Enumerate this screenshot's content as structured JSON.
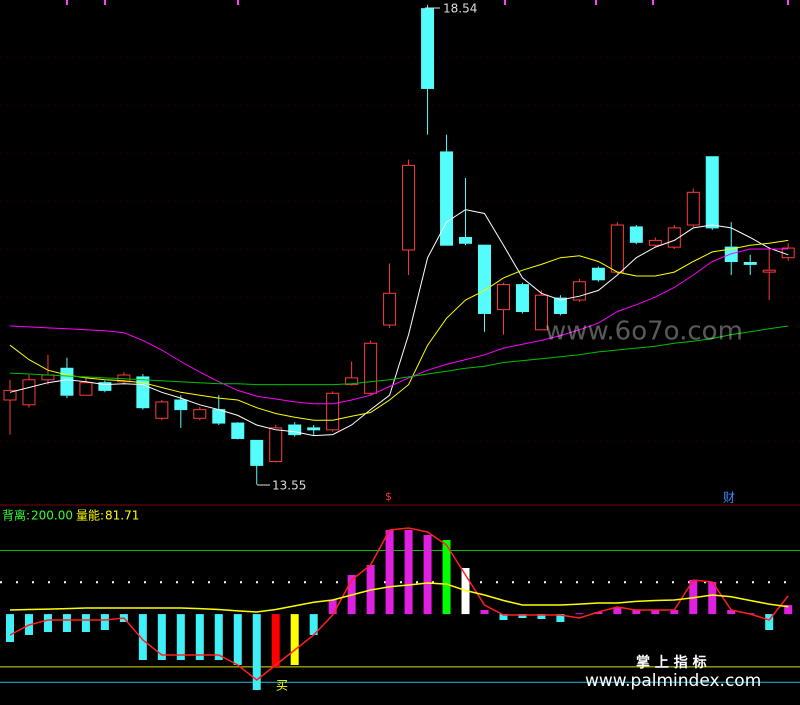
{
  "chart_data": [
    {
      "type": "candlestick",
      "ylim": [
        13.39,
        18.59
      ],
      "up_color": "#ff3c3c",
      "down_color": "#54fcfc",
      "open": [
        14.43,
        14.38,
        14.64,
        14.76,
        14.48,
        14.61,
        14.62,
        14.67,
        14.24,
        14.43,
        14.24,
        14.33,
        14.19,
        14.01,
        13.79,
        14.17,
        14.14,
        14.12,
        14.59,
        14.5,
        15.21,
        15.99,
        18.5,
        17.01,
        16.12,
        16.04,
        15.37,
        15.63,
        15.16,
        15.49,
        15.47,
        15.8,
        15.76,
        16.23,
        16.04,
        16.02,
        16.25,
        16.96,
        16.02,
        15.86,
        15.76,
        15.91
      ],
      "high": [
        14.64,
        14.69,
        14.9,
        14.87,
        14.66,
        14.63,
        14.72,
        14.7,
        14.43,
        14.48,
        14.36,
        14.48,
        14.2,
        14.01,
        14.17,
        14.2,
        14.17,
        14.52,
        14.83,
        15.05,
        15.85,
        16.93,
        18.54,
        17.19,
        16.74,
        16.04,
        15.65,
        15.65,
        15.57,
        15.52,
        15.69,
        15.82,
        16.28,
        16.25,
        16.12,
        16.25,
        16.63,
        16.96,
        16.28,
        15.94,
        16.01,
        16.06
      ],
      "low": [
        14.07,
        14.35,
        14.59,
        14.45,
        14.48,
        14.51,
        14.6,
        14.33,
        14.22,
        14.14,
        14.22,
        14.17,
        14.02,
        13.55,
        13.78,
        14.05,
        14.06,
        14.1,
        14.58,
        14.48,
        15.18,
        15.73,
        17.19,
        16.04,
        16.04,
        15.14,
        15.11,
        15.33,
        15.16,
        15.31,
        15.45,
        15.66,
        15.74,
        16.05,
        16.02,
        16.0,
        16.23,
        16.2,
        15.73,
        15.73,
        15.47,
        15.88
      ],
      "close": [
        14.53,
        14.64,
        14.69,
        14.48,
        14.61,
        14.53,
        14.69,
        14.35,
        14.41,
        14.33,
        14.33,
        14.19,
        14.03,
        13.75,
        14.14,
        14.07,
        14.12,
        14.5,
        14.66,
        15.02,
        15.54,
        16.87,
        17.67,
        16.04,
        16.06,
        15.33,
        15.63,
        15.35,
        15.52,
        15.33,
        15.66,
        15.68,
        16.25,
        16.07,
        16.09,
        16.22,
        16.59,
        16.22,
        15.87,
        15.84,
        15.78,
        16.01
      ],
      "lines": [
        {
          "color": "#ffffff",
          "values": [
            14.51,
            14.56,
            14.61,
            14.64,
            14.62,
            14.59,
            14.6,
            14.59,
            14.51,
            14.45,
            14.38,
            14.33,
            14.27,
            14.17,
            14.12,
            14.1,
            14.06,
            14.07,
            14.17,
            14.33,
            14.48,
            15.11,
            15.91,
            16.28,
            16.41,
            16.37,
            16.04,
            15.7,
            15.54,
            15.47,
            15.51,
            15.57,
            15.73,
            15.91,
            16.02,
            16.09,
            16.22,
            16.25,
            16.22,
            16.12,
            16.01,
            15.94
          ]
        },
        {
          "color": "#ffff00",
          "values": [
            15.0,
            14.85,
            14.74,
            14.69,
            14.66,
            14.64,
            14.63,
            14.61,
            14.56,
            14.51,
            14.48,
            14.45,
            14.43,
            14.35,
            14.29,
            14.25,
            14.22,
            14.22,
            14.26,
            14.3,
            14.43,
            14.59,
            15.0,
            15.28,
            15.47,
            15.57,
            15.7,
            15.78,
            15.84,
            15.91,
            15.93,
            15.87,
            15.76,
            15.72,
            15.72,
            15.76,
            15.87,
            15.97,
            16.0,
            16.04,
            16.06,
            16.09
          ]
        },
        {
          "color": "#ff00ff",
          "values": [
            15.2,
            15.19,
            15.18,
            15.17,
            15.16,
            15.15,
            15.13,
            15.05,
            14.95,
            14.83,
            14.72,
            14.62,
            14.53,
            14.47,
            14.44,
            14.41,
            14.39,
            14.39,
            14.43,
            14.48,
            14.57,
            14.66,
            14.74,
            14.8,
            14.85,
            14.9,
            14.97,
            15.01,
            15.05,
            15.1,
            15.16,
            15.23,
            15.35,
            15.42,
            15.5,
            15.6,
            15.73,
            15.87,
            15.95,
            16.0,
            16.0,
            16.0
          ]
        },
        {
          "color": "#00c000",
          "values": [
            14.71,
            14.7,
            14.69,
            14.68,
            14.67,
            14.66,
            14.65,
            14.64,
            14.63,
            14.62,
            14.61,
            14.6,
            14.6,
            14.59,
            14.59,
            14.59,
            14.59,
            14.59,
            14.6,
            14.62,
            14.64,
            14.67,
            14.7,
            14.73,
            14.76,
            14.78,
            14.82,
            14.84,
            14.86,
            14.88,
            14.9,
            14.93,
            14.95,
            14.97,
            14.99,
            15.02,
            15.04,
            15.07,
            15.11,
            15.14,
            15.17,
            15.2
          ]
        }
      ],
      "markers": [
        "$",
        "财"
      ]
    },
    {
      "type": "indicator",
      "ylim": [
        -1000,
        1200
      ],
      "bars": {
        "values": [
          -307,
          -230,
          -197,
          -197,
          -197,
          -175,
          -87,
          -505,
          -505,
          -505,
          -505,
          -505,
          -560,
          -835,
          -582,
          -560,
          -230,
          155,
          430,
          540,
          925,
          925,
          870,
          815,
          507,
          45,
          -65,
          -43,
          -54,
          -87,
          10,
          23,
          78,
          45,
          45,
          45,
          375,
          353,
          45,
          10,
          -175,
          100
        ],
        "colors": [
          "#3ff0f8",
          "#3ff0f8",
          "#3ff0f8",
          "#3ff0f8",
          "#3ff0f8",
          "#3ff0f8",
          "#3ff0f8",
          "#3ff0f8",
          "#3ff0f8",
          "#3ff0f8",
          "#3ff0f8",
          "#3ff0f8",
          "#3ff0f8",
          "#3ff0f8",
          "#ff0000",
          "#ffff00",
          "#3ff0f8",
          "#e020e0",
          "#e020e0",
          "#e020e0",
          "#e020e0",
          "#e020e0",
          "#e020e0",
          "#00ff00",
          "#ffffff",
          "#e020e0",
          "#3ff0f8",
          "#3ff0f8",
          "#3ff0f8",
          "#3ff0f8",
          "#e020e0",
          "#e020e0",
          "#e020e0",
          "#e020e0",
          "#e020e0",
          "#e020e0",
          "#e020e0",
          "#e020e0",
          "#e020e0",
          "#e020e0",
          "#3ff0f8",
          "#e020e0"
        ]
      },
      "series": [
        {
          "name": "背离:",
          "color": "#ff2020",
          "label_color": "#33ff33",
          "value_label": "200.00",
          "values": [
            -230,
            -120,
            -65,
            -65,
            -65,
            -65,
            -43,
            -285,
            -450,
            -450,
            -450,
            -450,
            -560,
            -725,
            -560,
            -395,
            -230,
            -10,
            375,
            540,
            925,
            947,
            903,
            760,
            430,
            100,
            -10,
            -10,
            -10,
            -10,
            -43,
            23,
            78,
            45,
            45,
            45,
            375,
            353,
            45,
            1,
            -65,
            200
          ]
        },
        {
          "name": "量能:",
          "color": "#ffff00",
          "label_color": "#ffff00",
          "value_label": "81.71",
          "values": [
            45,
            50,
            55,
            60,
            67,
            67,
            67,
            67,
            67,
            67,
            60,
            50,
            35,
            23,
            50,
            90,
            130,
            155,
            210,
            265,
            300,
            320,
            342,
            330,
            260,
            210,
            150,
            100,
            100,
            100,
            110,
            122,
            122,
            140,
            150,
            155,
            180,
            210,
            190,
            150,
            110,
            81.71
          ]
        }
      ],
      "levels": [
        {
          "value": 700,
          "color": "#00c000"
        },
        {
          "value": 350,
          "color": "#ffffff"
        },
        {
          "value": -580,
          "color": "#e0e000"
        },
        {
          "value": -750,
          "color": "#20c0e0"
        }
      ],
      "signal": "买"
    }
  ],
  "watermarks": [
    "www.6o7o.com",
    "掌 上 指 标",
    "www.palmindex.com"
  ]
}
